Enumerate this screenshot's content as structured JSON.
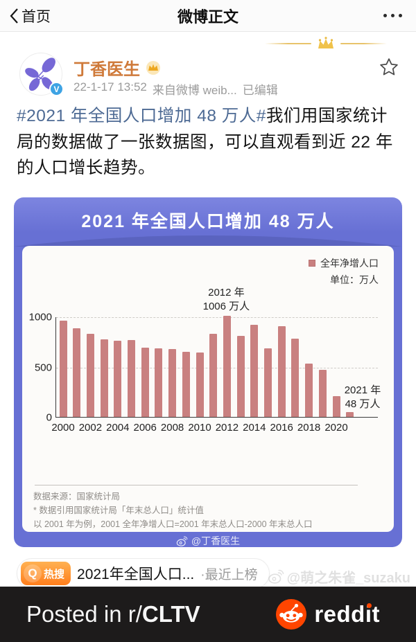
{
  "nav": {
    "back_label": "首页",
    "title": "微博正文"
  },
  "post": {
    "author": "丁香医生",
    "time": "22-1-17 13:52",
    "source": "来自微博 weib...",
    "edited": "已编辑",
    "hashtag": "#2021 年全国人口增加 48 万人#",
    "body": "我们用国家统计局的数据做了一张数据图，可以直观看到近 22 年的人口增长趋势。"
  },
  "chart_card": {
    "title": "2021 年全国人口增加 48 万人",
    "legend_label": "全年净增人口",
    "unit_label": "单位：万人",
    "ann2012_line1": "2012 年",
    "ann2012_line2": "1006 万人",
    "ann2021_line1": "2021 年",
    "ann2021_line2": "48 万人",
    "notes": [
      "数据来源：国家统计局",
      "* 数据引用国家统计局「年末总人口」统计值",
      "以 2001 年为例，2001 全年净增人口=2001 年末总人口-2000 年末总人口"
    ],
    "credit": "@丁香医生"
  },
  "chart_data": {
    "type": "bar",
    "title": "2021 年全国人口增加 48 万人",
    "legend": [
      "全年净增人口"
    ],
    "unit": "万人",
    "categories": [
      2000,
      2001,
      2002,
      2003,
      2004,
      2005,
      2006,
      2007,
      2008,
      2009,
      2010,
      2011,
      2012,
      2013,
      2014,
      2015,
      2016,
      2017,
      2018,
      2019,
      2020,
      2021
    ],
    "values": [
      957,
      884,
      826,
      774,
      761,
      768,
      692,
      681,
      673,
      648,
      641,
      825,
      1006,
      804,
      920,
      680,
      906,
      779,
      530,
      467,
      204,
      48
    ],
    "xticks": [
      2000,
      2002,
      2004,
      2006,
      2008,
      2010,
      2012,
      2014,
      2016,
      2018,
      2020
    ],
    "yticks": [
      0,
      500,
      1000
    ],
    "ylim": [
      0,
      1050
    ],
    "grid": "dashed horizontal",
    "legend_position": "top-right",
    "bar_color": "#c98080",
    "annotations": [
      {
        "x": 2012,
        "text": "2012 年 1006 万人"
      },
      {
        "x": 2021,
        "text": "2021 年 48 万人"
      }
    ]
  },
  "bottom": {
    "hot_label": "热搜",
    "hot_q": "Q",
    "hot_text": "2021年全国人口...",
    "hot_suffix": "·最近上榜",
    "watermark": "@萌之朱雀_suzaku"
  },
  "banner": {
    "prefix": "Posted in r/",
    "subreddit": "CLTV",
    "brand": "reddit"
  }
}
